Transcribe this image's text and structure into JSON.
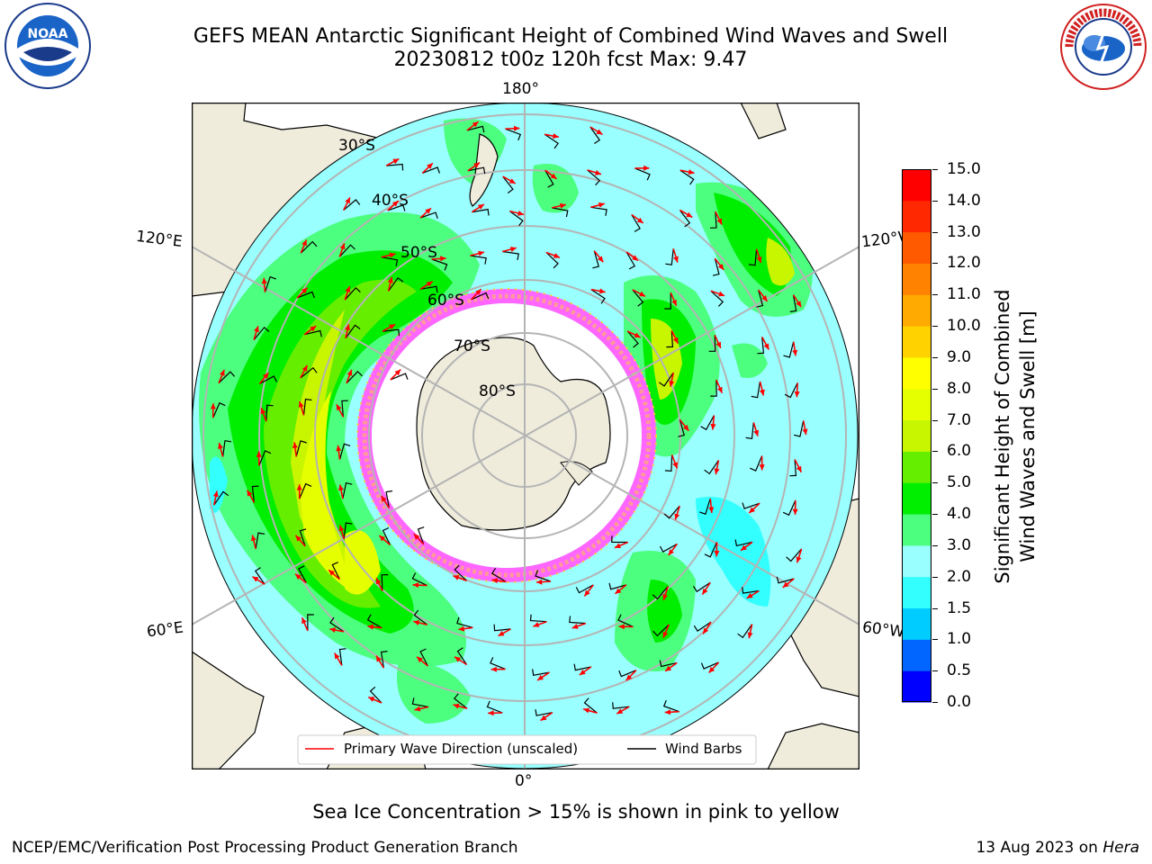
{
  "title_line1": "GEFS MEAN Antarctic Significant Height of Combined Wind Waves and Swell",
  "title_line2": "20230812 t00z 120h fcst   Max: 9.47",
  "logos": {
    "left": "NOAA",
    "right": "National Weather Service"
  },
  "map": {
    "longitude_labels": {
      "top": "180°",
      "bottom": "0°",
      "left_upper": "120°E",
      "left_lower": "60°E",
      "right_upper": "120°W",
      "right_lower": "60°W"
    },
    "latitude_labels": [
      "30°S",
      "40°S",
      "50°S",
      "60°S",
      "70°S",
      "80°S"
    ],
    "legend": {
      "wave": "Primary Wave Direction (unscaled)",
      "wind": "Wind Barbs"
    },
    "colors": {
      "land": "#efecdc",
      "grid": "#b4b4b4",
      "wave_arrow": "#ff0000",
      "wind_barb": "#000000"
    }
  },
  "colorbar": {
    "label": "Significant Height of Combined Wind Waves and Swell [m]",
    "label_line1": "Significant Height of Combined",
    "label_line2": "Wind Waves and Swell [m]",
    "ticks": [
      "0.0",
      "0.5",
      "1.0",
      "1.5",
      "2.0",
      "3.0",
      "4.0",
      "5.0",
      "6.0",
      "7.0",
      "8.0",
      "9.0",
      "10.0",
      "11.0",
      "12.0",
      "13.0",
      "14.0",
      "15.0"
    ],
    "colors": [
      "#0000ff",
      "#0066ff",
      "#00ccff",
      "#33ffff",
      "#99ffff",
      "#4cff7f",
      "#00ee00",
      "#66ee00",
      "#c8f500",
      "#e6ff00",
      "#ffff00",
      "#ffd200",
      "#ffaa00",
      "#ff8200",
      "#ff5a00",
      "#ff2800",
      "#ff0000"
    ]
  },
  "note": "Sea Ice Concentration > 15% is shown in pink to yellow",
  "footer_left": "NCEP/EMC/Verification Post Processing Product Generation Branch",
  "footer_right_prefix": "13 Aug 2023 on ",
  "footer_right_italic": "Hera"
}
